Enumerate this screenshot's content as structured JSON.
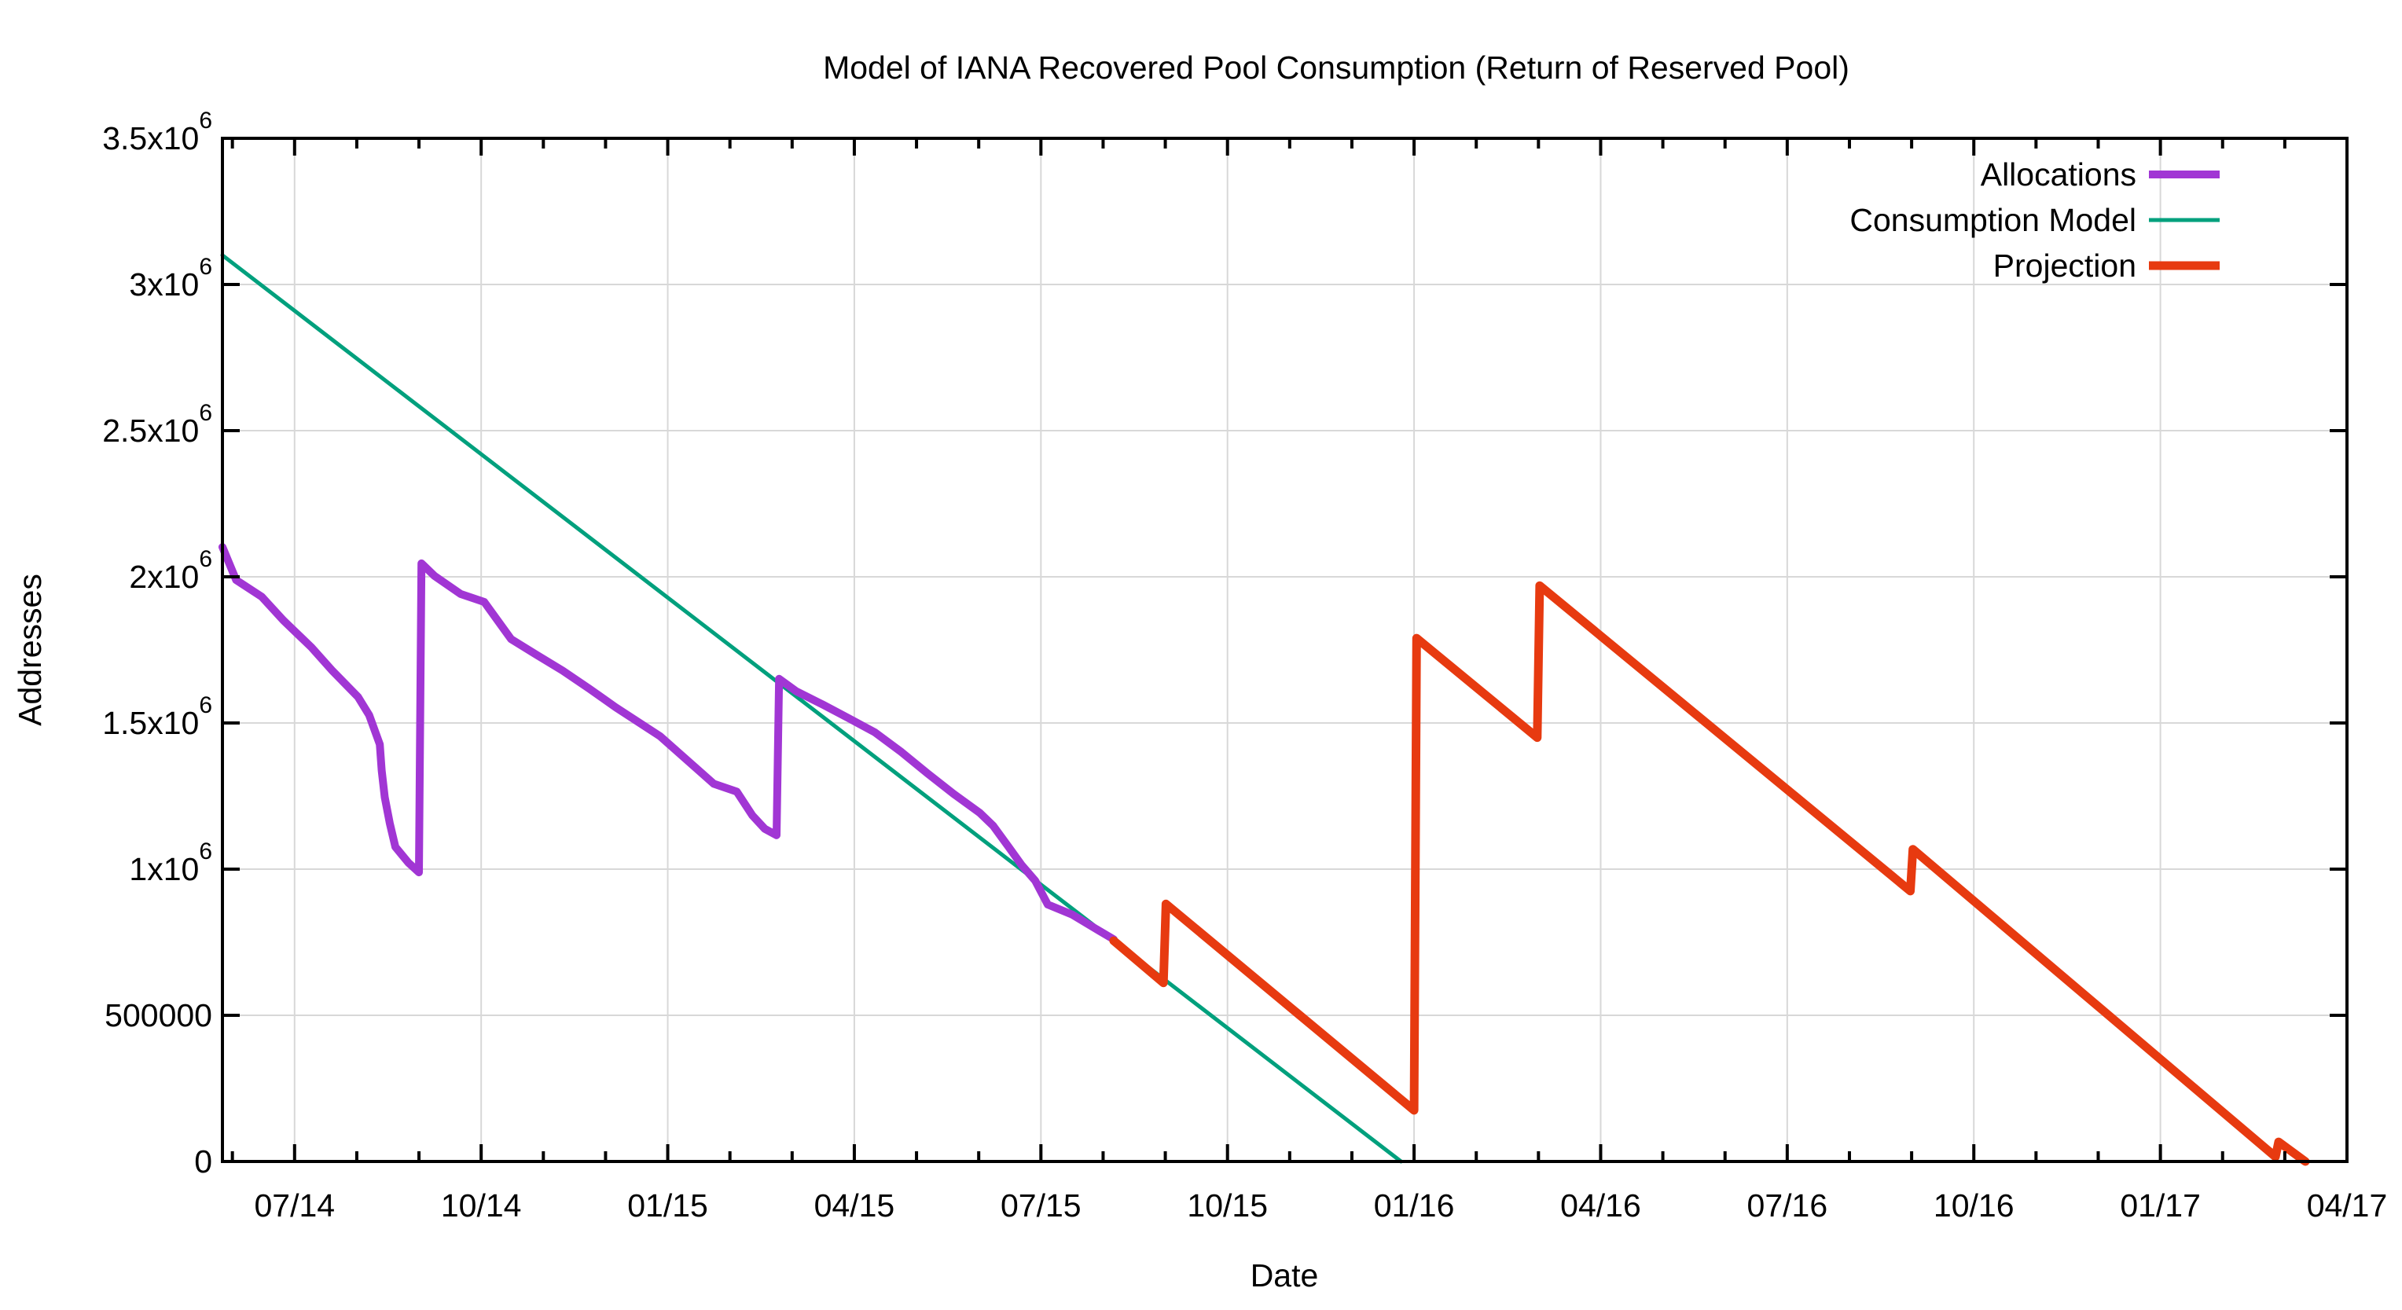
{
  "window": {
    "background": "#ffffff"
  },
  "colors": {
    "grid": "#d8d8d8",
    "axis": "#000000",
    "text": "#000000"
  },
  "chart_data": {
    "type": "line",
    "title": "Model of IANA Recovered Pool Consumption (Return of Reserved Pool)",
    "xlabel": "Date",
    "ylabel": "Addresses",
    "x_unit": "months since 2014-01-01 (6 = 07/14)",
    "xlim": [
      4.84,
      39
    ],
    "ylim": [
      0,
      3500000
    ],
    "grid": true,
    "legend_position": "top-right-inside",
    "x_major_ticks": [
      6,
      9,
      12,
      15,
      18,
      21,
      24,
      27,
      30,
      33,
      36,
      39
    ],
    "x_tick_labels": [
      "07/14",
      "10/14",
      "01/15",
      "04/15",
      "07/15",
      "10/15",
      "01/16",
      "04/16",
      "07/16",
      "10/16",
      "01/17",
      "04/17"
    ],
    "x_minor_tick_step_months": 1,
    "y_ticks": [
      {
        "value": 0,
        "base": "0",
        "sup": ""
      },
      {
        "value": 500000,
        "base": "500000",
        "sup": ""
      },
      {
        "value": 1000000,
        "base": "1x10",
        "sup": "6"
      },
      {
        "value": 1500000,
        "base": "1.5x10",
        "sup": "6"
      },
      {
        "value": 2000000,
        "base": "2x10",
        "sup": "6"
      },
      {
        "value": 2500000,
        "base": "2.5x10",
        "sup": "6"
      },
      {
        "value": 3000000,
        "base": "3x10",
        "sup": "6"
      },
      {
        "value": 3500000,
        "base": "3.5x10",
        "sup": "6"
      }
    ],
    "series": [
      {
        "name": "Allocations",
        "color": "#a136d4",
        "width": 10,
        "z": 2,
        "points": [
          [
            4.84,
            2102000
          ],
          [
            5.06,
            1989000
          ],
          [
            5.47,
            1932000
          ],
          [
            5.82,
            1851000
          ],
          [
            6.27,
            1759000
          ],
          [
            6.61,
            1678000
          ],
          [
            7.02,
            1589000
          ],
          [
            7.2,
            1527000
          ],
          [
            7.37,
            1427000
          ],
          [
            7.4,
            1338000
          ],
          [
            7.45,
            1246000
          ],
          [
            7.53,
            1157000
          ],
          [
            7.62,
            1076000
          ],
          [
            7.83,
            1022000
          ],
          [
            8.0,
            989000
          ],
          [
            8.04,
            2046000
          ],
          [
            8.25,
            2003000
          ],
          [
            8.67,
            1941000
          ],
          [
            9.05,
            1914000
          ],
          [
            9.48,
            1787000
          ],
          [
            9.89,
            1733000
          ],
          [
            10.31,
            1679000
          ],
          [
            10.74,
            1617000
          ],
          [
            11.16,
            1554000
          ],
          [
            11.88,
            1454000
          ],
          [
            12.38,
            1360000
          ],
          [
            12.74,
            1292000
          ],
          [
            13.11,
            1265000
          ],
          [
            13.36,
            1184000
          ],
          [
            13.56,
            1138000
          ],
          [
            13.75,
            1116000
          ],
          [
            13.79,
            1651000
          ],
          [
            14.07,
            1608000
          ],
          [
            14.5,
            1562000
          ],
          [
            14.91,
            1516000
          ],
          [
            15.33,
            1468000
          ],
          [
            15.76,
            1400000
          ],
          [
            16.18,
            1327000
          ],
          [
            16.6,
            1257000
          ],
          [
            17.02,
            1192000
          ],
          [
            17.23,
            1149000
          ],
          [
            17.48,
            1076000
          ],
          [
            17.69,
            1014000
          ],
          [
            17.91,
            960000
          ],
          [
            18.11,
            879000
          ],
          [
            18.5,
            845000
          ],
          [
            18.85,
            800000
          ],
          [
            19.17,
            760000
          ]
        ]
      },
      {
        "name": "Consumption Model",
        "color": "#00a07d",
        "width": 5,
        "z": 1,
        "points": [
          [
            4.84,
            3100000
          ],
          [
            23.79,
            0
          ]
        ]
      },
      {
        "name": "Projection",
        "color": "#e73a10",
        "width": 11,
        "z": 3,
        "points": [
          [
            19.17,
            755000
          ],
          [
            19.97,
            611000
          ],
          [
            20.01,
            881000
          ],
          [
            24.0,
            175000
          ],
          [
            24.04,
            1790000
          ],
          [
            25.98,
            1450000
          ],
          [
            26.02,
            1970000
          ],
          [
            31.98,
            925000
          ],
          [
            32.02,
            1068000
          ],
          [
            37.85,
            16000
          ],
          [
            37.9,
            67000
          ],
          [
            38.33,
            0
          ]
        ]
      }
    ]
  }
}
